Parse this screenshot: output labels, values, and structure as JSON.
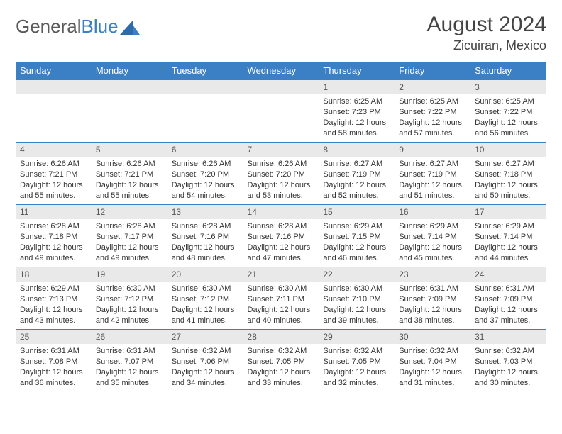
{
  "logo": {
    "text_gray": "General",
    "text_blue": "Blue"
  },
  "title": "August 2024",
  "location": "Zicuiran, Mexico",
  "colors": {
    "header_bg": "#3b7fc4",
    "header_text": "#ffffff",
    "daynum_bg": "#e9e9e9",
    "row_border": "#3b7fc4",
    "body_text": "#333333",
    "logo_gray": "#5a5a5a",
    "logo_blue": "#3b7fc4"
  },
  "day_headers": [
    "Sunday",
    "Monday",
    "Tuesday",
    "Wednesday",
    "Thursday",
    "Friday",
    "Saturday"
  ],
  "weeks": [
    [
      {
        "empty": true
      },
      {
        "empty": true
      },
      {
        "empty": true
      },
      {
        "empty": true
      },
      {
        "num": "1",
        "sunrise": "6:25 AM",
        "sunset": "7:23 PM",
        "daylight": "12 hours and 58 minutes."
      },
      {
        "num": "2",
        "sunrise": "6:25 AM",
        "sunset": "7:22 PM",
        "daylight": "12 hours and 57 minutes."
      },
      {
        "num": "3",
        "sunrise": "6:25 AM",
        "sunset": "7:22 PM",
        "daylight": "12 hours and 56 minutes."
      }
    ],
    [
      {
        "num": "4",
        "sunrise": "6:26 AM",
        "sunset": "7:21 PM",
        "daylight": "12 hours and 55 minutes."
      },
      {
        "num": "5",
        "sunrise": "6:26 AM",
        "sunset": "7:21 PM",
        "daylight": "12 hours and 55 minutes."
      },
      {
        "num": "6",
        "sunrise": "6:26 AM",
        "sunset": "7:20 PM",
        "daylight": "12 hours and 54 minutes."
      },
      {
        "num": "7",
        "sunrise": "6:26 AM",
        "sunset": "7:20 PM",
        "daylight": "12 hours and 53 minutes."
      },
      {
        "num": "8",
        "sunrise": "6:27 AM",
        "sunset": "7:19 PM",
        "daylight": "12 hours and 52 minutes."
      },
      {
        "num": "9",
        "sunrise": "6:27 AM",
        "sunset": "7:19 PM",
        "daylight": "12 hours and 51 minutes."
      },
      {
        "num": "10",
        "sunrise": "6:27 AM",
        "sunset": "7:18 PM",
        "daylight": "12 hours and 50 minutes."
      }
    ],
    [
      {
        "num": "11",
        "sunrise": "6:28 AM",
        "sunset": "7:18 PM",
        "daylight": "12 hours and 49 minutes."
      },
      {
        "num": "12",
        "sunrise": "6:28 AM",
        "sunset": "7:17 PM",
        "daylight": "12 hours and 49 minutes."
      },
      {
        "num": "13",
        "sunrise": "6:28 AM",
        "sunset": "7:16 PM",
        "daylight": "12 hours and 48 minutes."
      },
      {
        "num": "14",
        "sunrise": "6:28 AM",
        "sunset": "7:16 PM",
        "daylight": "12 hours and 47 minutes."
      },
      {
        "num": "15",
        "sunrise": "6:29 AM",
        "sunset": "7:15 PM",
        "daylight": "12 hours and 46 minutes."
      },
      {
        "num": "16",
        "sunrise": "6:29 AM",
        "sunset": "7:14 PM",
        "daylight": "12 hours and 45 minutes."
      },
      {
        "num": "17",
        "sunrise": "6:29 AM",
        "sunset": "7:14 PM",
        "daylight": "12 hours and 44 minutes."
      }
    ],
    [
      {
        "num": "18",
        "sunrise": "6:29 AM",
        "sunset": "7:13 PM",
        "daylight": "12 hours and 43 minutes."
      },
      {
        "num": "19",
        "sunrise": "6:30 AM",
        "sunset": "7:12 PM",
        "daylight": "12 hours and 42 minutes."
      },
      {
        "num": "20",
        "sunrise": "6:30 AM",
        "sunset": "7:12 PM",
        "daylight": "12 hours and 41 minutes."
      },
      {
        "num": "21",
        "sunrise": "6:30 AM",
        "sunset": "7:11 PM",
        "daylight": "12 hours and 40 minutes."
      },
      {
        "num": "22",
        "sunrise": "6:30 AM",
        "sunset": "7:10 PM",
        "daylight": "12 hours and 39 minutes."
      },
      {
        "num": "23",
        "sunrise": "6:31 AM",
        "sunset": "7:09 PM",
        "daylight": "12 hours and 38 minutes."
      },
      {
        "num": "24",
        "sunrise": "6:31 AM",
        "sunset": "7:09 PM",
        "daylight": "12 hours and 37 minutes."
      }
    ],
    [
      {
        "num": "25",
        "sunrise": "6:31 AM",
        "sunset": "7:08 PM",
        "daylight": "12 hours and 36 minutes."
      },
      {
        "num": "26",
        "sunrise": "6:31 AM",
        "sunset": "7:07 PM",
        "daylight": "12 hours and 35 minutes."
      },
      {
        "num": "27",
        "sunrise": "6:32 AM",
        "sunset": "7:06 PM",
        "daylight": "12 hours and 34 minutes."
      },
      {
        "num": "28",
        "sunrise": "6:32 AM",
        "sunset": "7:05 PM",
        "daylight": "12 hours and 33 minutes."
      },
      {
        "num": "29",
        "sunrise": "6:32 AM",
        "sunset": "7:05 PM",
        "daylight": "12 hours and 32 minutes."
      },
      {
        "num": "30",
        "sunrise": "6:32 AM",
        "sunset": "7:04 PM",
        "daylight": "12 hours and 31 minutes."
      },
      {
        "num": "31",
        "sunrise": "6:32 AM",
        "sunset": "7:03 PM",
        "daylight": "12 hours and 30 minutes."
      }
    ]
  ],
  "labels": {
    "sunrise": "Sunrise:",
    "sunset": "Sunset:",
    "daylight": "Daylight:"
  }
}
